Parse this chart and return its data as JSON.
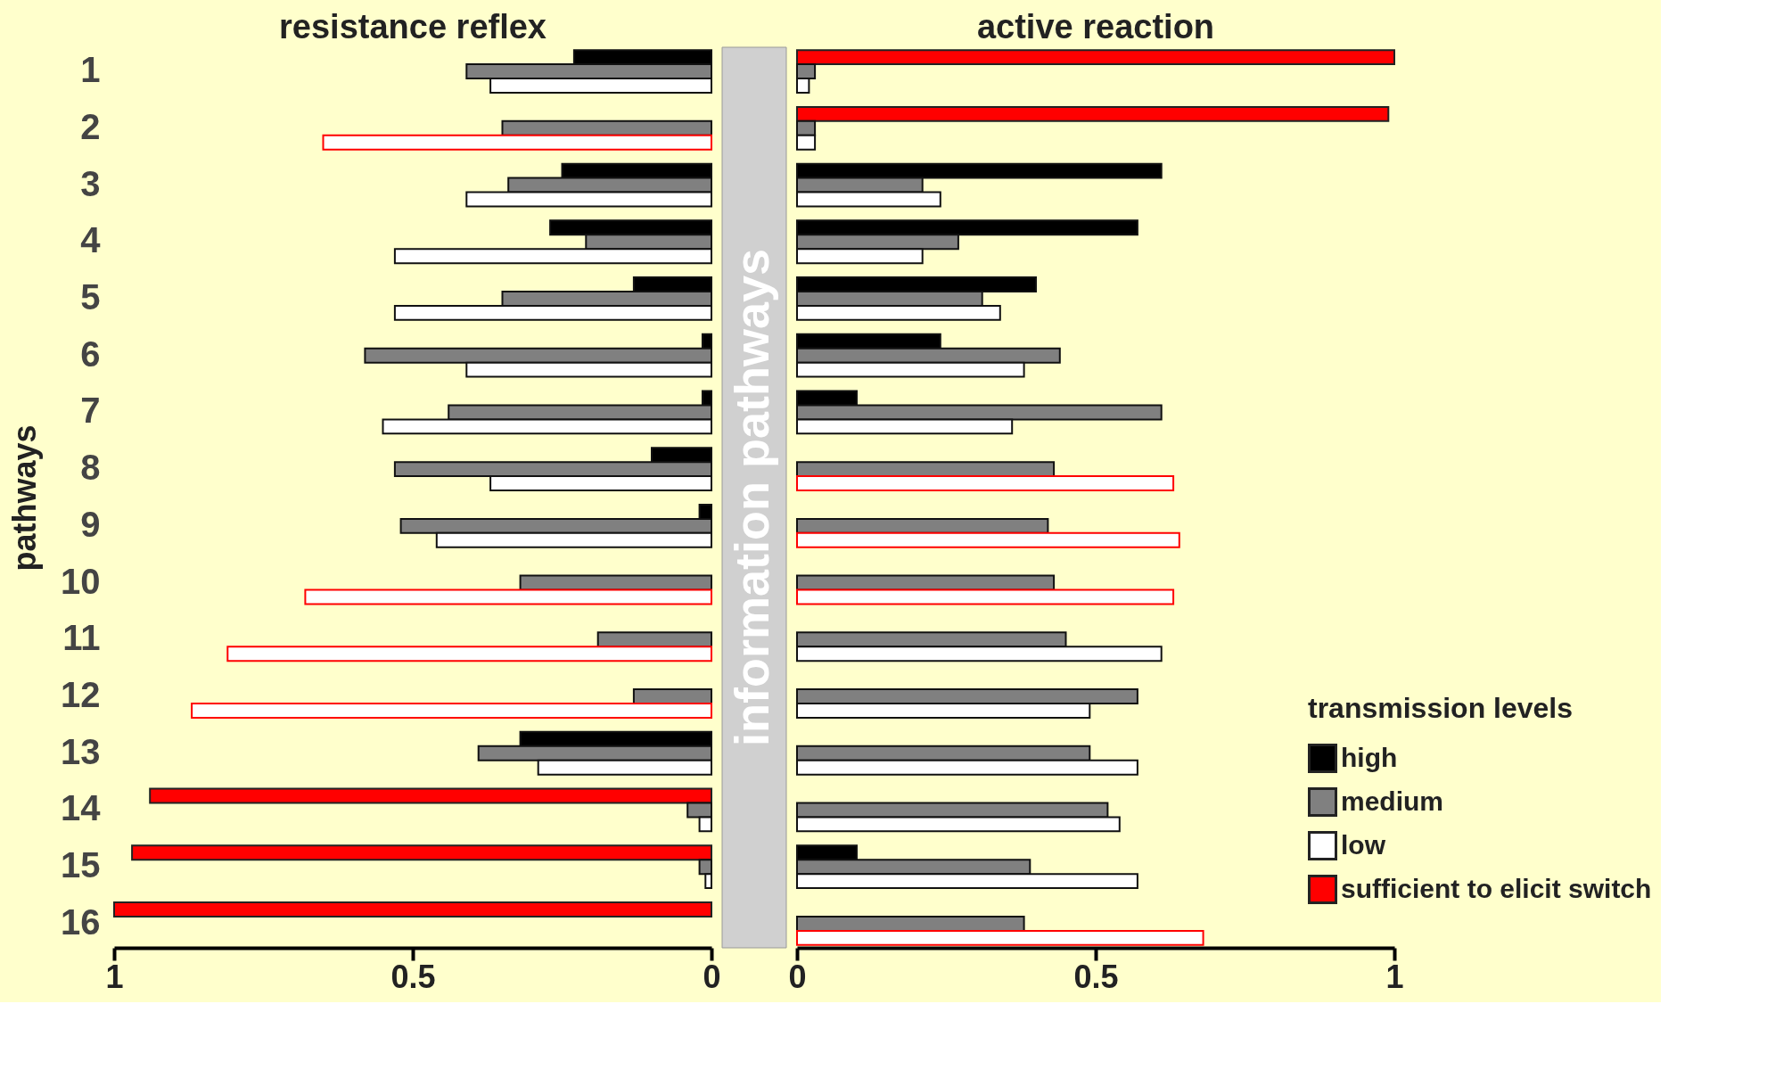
{
  "chart_data": [
    {
      "type": "bar",
      "orientation": "horizontal",
      "title": "resistance reflex",
      "ylabel": "pathways",
      "categories": [
        "1",
        "2",
        "3",
        "4",
        "5",
        "6",
        "7",
        "8",
        "9",
        "10",
        "11",
        "12",
        "13",
        "14",
        "15",
        "16"
      ],
      "xlim": [
        1,
        0
      ],
      "xticks": [
        1,
        0.5,
        0
      ],
      "legend": false,
      "grid": false,
      "annotations": [
        "information pathways"
      ],
      "series": [
        {
          "color": "#000000",
          "values": [
            0.23,
            null,
            0.25,
            0.27,
            0.13,
            0.015,
            0.015,
            0.1,
            0.02,
            null,
            null,
            null,
            0.32,
            0.94,
            0.97,
            1.0
          ],
          "colors": [
            "#000000",
            "#000000",
            "#000000",
            "#000000",
            "#000000",
            "#000000",
            "#000000",
            "#000000",
            "#000000",
            "#000000",
            "#000000",
            "#000000",
            "#000000",
            "#ff0000",
            "#ff0000",
            "#ff0000"
          ]
        },
        {
          "color": "#808080",
          "values": [
            0.41,
            0.35,
            0.34,
            0.21,
            0.35,
            0.58,
            0.44,
            0.53,
            0.52,
            0.32,
            0.19,
            0.13,
            0.39,
            0.04,
            0.02,
            null
          ]
        },
        {
          "color": "#ffffff",
          "values": [
            0.37,
            0.65,
            0.41,
            0.53,
            0.53,
            0.41,
            0.55,
            0.37,
            0.46,
            0.68,
            0.81,
            0.87,
            0.29,
            0.02,
            0.01,
            null
          ],
          "colors": [
            "#ffffff",
            "#ff0000",
            "#ffffff",
            "#ffffff",
            "#ffffff",
            "#ffffff",
            "#ffffff",
            "#ffffff",
            "#ffffff",
            "#ff0000",
            "#ff0000",
            "#ff0000",
            "#ffffff",
            "#ffffff",
            "#ffffff",
            "#ffffff"
          ]
        }
      ]
    },
    {
      "type": "bar",
      "orientation": "horizontal",
      "title": "active reaction",
      "categories": [
        "1",
        "2",
        "3",
        "4",
        "5",
        "6",
        "7",
        "8",
        "9",
        "10",
        "11",
        "12",
        "13",
        "14",
        "15",
        "16"
      ],
      "xlim": [
        0,
        1
      ],
      "xticks": [
        0,
        0.5,
        1
      ],
      "tick_labels": "x",
      "legend": "bottom right",
      "legend_title": "transmission levels",
      "grid": false,
      "series": [
        {
          "name": "high",
          "color": "#000000",
          "values": [
            1.0,
            0.99,
            0.61,
            0.57,
            0.4,
            0.24,
            0.1,
            null,
            null,
            null,
            null,
            null,
            null,
            null,
            0.1,
            null
          ],
          "colors": [
            "#ff0000",
            "#ff0000",
            "#000000",
            "#000000",
            "#000000",
            "#000000",
            "#000000",
            "#000000",
            "#000000",
            "#000000",
            "#000000",
            "#000000",
            "#000000",
            "#000000",
            "#000000",
            "#000000"
          ]
        },
        {
          "name": "medium",
          "color": "#808080",
          "values": [
            0.03,
            0.03,
            0.21,
            0.27,
            0.31,
            0.44,
            0.61,
            0.43,
            0.42,
            0.43,
            0.45,
            0.57,
            0.49,
            0.52,
            0.39,
            0.38
          ]
        },
        {
          "name": "low",
          "color": "#ffffff",
          "values": [
            0.02,
            0.03,
            0.24,
            0.21,
            0.34,
            0.38,
            0.36,
            0.63,
            0.64,
            0.63,
            0.61,
            0.49,
            0.57,
            0.54,
            0.57,
            0.68
          ],
          "colors": [
            "#ffffff",
            "#ffffff",
            "#ffffff",
            "#ffffff",
            "#ffffff",
            "#ffffff",
            "#ffffff",
            "#ff0000",
            "#ff0000",
            "#ff0000",
            "#ffffff",
            "#ffffff",
            "#ffffff",
            "#ffffff",
            "#ffffff",
            "#ff0000"
          ]
        },
        {
          "name": "sufficient to elicit switch",
          "color": "#ff0000",
          "values": [
            null,
            null,
            null,
            null,
            null,
            null,
            null,
            null,
            null,
            null,
            null,
            null,
            null,
            null,
            null,
            null
          ]
        }
      ]
    }
  ]
}
